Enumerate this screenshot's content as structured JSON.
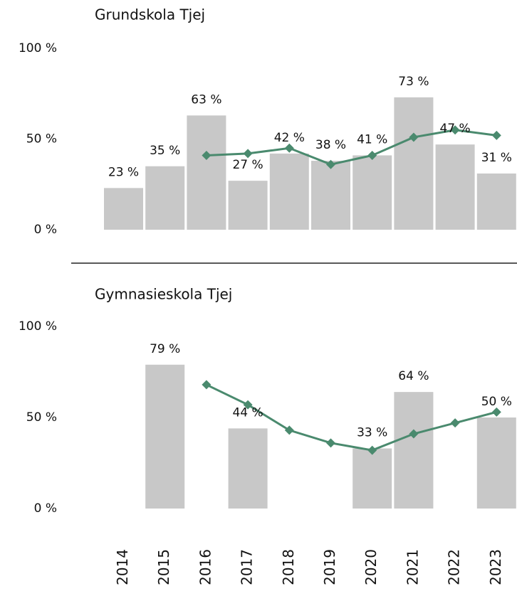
{
  "chart_data": [
    {
      "type": "bar",
      "title": "Grundskola Tjej",
      "series": [
        {
          "type": "bar",
          "color": "#c8c8c8",
          "values": [
            23,
            35,
            63,
            27,
            42,
            38,
            41,
            73,
            47,
            31
          ],
          "value_labels": [
            "23 %",
            "35 %",
            "63 %",
            "27 %",
            "42 %",
            "38 %",
            "41 %",
            "73 %",
            "47 %",
            "31 %"
          ]
        },
        {
          "type": "line",
          "color": "#4a8a6e",
          "values": [
            null,
            null,
            41,
            42,
            45,
            36,
            41,
            51,
            55,
            52
          ]
        }
      ],
      "ylim": [
        0,
        100
      ],
      "yticks": [
        {
          "value": 0,
          "label": "0 %"
        },
        {
          "value": 50,
          "label": "50 %"
        },
        {
          "value": 100,
          "label": "100 %"
        }
      ]
    },
    {
      "type": "bar",
      "title": "Gymnasieskola Tjej",
      "categories": [
        "2014",
        "2015",
        "2016",
        "2017",
        "2018",
        "2019",
        "2020",
        "2021",
        "2022",
        "2023"
      ],
      "series": [
        {
          "type": "bar",
          "color": "#c8c8c8",
          "values": [
            null,
            79,
            null,
            44,
            null,
            null,
            33,
            64,
            null,
            50
          ],
          "value_labels": [
            null,
            "79 %",
            null,
            "44 %",
            null,
            null,
            "33 %",
            "64 %",
            null,
            "50 %"
          ]
        },
        {
          "type": "line",
          "color": "#4a8a6e",
          "values": [
            null,
            null,
            68,
            57,
            43,
            36,
            32,
            41,
            47,
            53
          ]
        }
      ],
      "ylim": [
        0,
        100
      ],
      "yticks": [
        {
          "value": 0,
          "label": "0 %"
        },
        {
          "value": 50,
          "label": "50 %"
        },
        {
          "value": 100,
          "label": "100 %"
        }
      ]
    }
  ]
}
